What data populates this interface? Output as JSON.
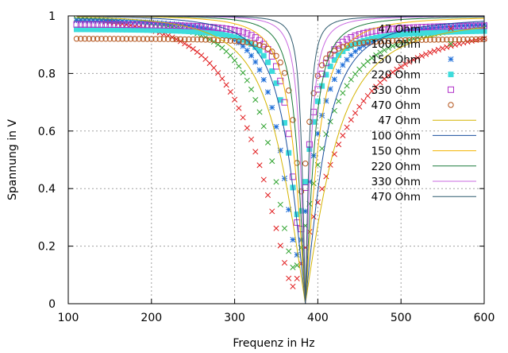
{
  "chart_data": {
    "type": "line",
    "title": "",
    "xlabel": "Frequenz in Hz",
    "ylabel": "Spannung in V",
    "xlim": [
      100,
      600
    ],
    "ylim": [
      0,
      1
    ],
    "xticks": [
      "100",
      "200",
      "300",
      "400",
      "500",
      "600"
    ],
    "yticks": [
      "0",
      "0.2",
      "0.4",
      "0.6",
      "0.8",
      "1"
    ],
    "grid": true,
    "legend_position": "top-right",
    "series": [
      {
        "name": "47 Ohm",
        "style": "points",
        "marker": "x",
        "color": "#e0191b",
        "f0": 370,
        "ymin": 0.06,
        "yfit": 0.15,
        "rbw": 0.42
      },
      {
        "name": "100 Ohm",
        "style": "points",
        "marker": "x",
        "color": "#2fa32f",
        "f0": 372,
        "ymin": 0.12,
        "yfit": 0.14,
        "rbw": 0.27
      },
      {
        "name": "150 Ohm",
        "style": "points",
        "marker": "asterisk",
        "color": "#1e6ed8",
        "f0": 375,
        "ymin": 0.17,
        "yfit": 0.13,
        "rbw": 0.18
      },
      {
        "name": "220 Ohm",
        "style": "points",
        "marker": "filled-square",
        "color": "#3ddcdc",
        "f0": 377,
        "ymin": 0.3,
        "yfit": 0.11,
        "rbw": 0.12
      },
      {
        "name": "330 Ohm",
        "style": "points",
        "marker": "open-square",
        "color": "#b030c8",
        "f0": 378,
        "ymin": 0.24,
        "yfit": 0.1,
        "rbw": 0.1
      },
      {
        "name": "470 Ohm",
        "style": "points",
        "marker": "open-circle",
        "color": "#b3541c",
        "f0": 380,
        "ymin": 0.39,
        "yfit": 0.09,
        "rbw": 0.07
      },
      {
        "name": "47 Ohm",
        "style": "line",
        "color": "#d4b400",
        "f0": 385,
        "ymin": 0.0,
        "rbw": 0.27
      },
      {
        "name": "100 Ohm",
        "style": "line",
        "color": "#1a4f9e",
        "f0": 385,
        "ymin": 0.0,
        "rbw": 0.18
      },
      {
        "name": "150 Ohm",
        "style": "line",
        "color": "#f2b300",
        "f0": 385,
        "ymin": 0.0,
        "rbw": 0.12
      },
      {
        "name": "220 Ohm",
        "style": "line",
        "color": "#1a7a3a",
        "f0": 385,
        "ymin": 0.0,
        "rbw": 0.085
      },
      {
        "name": "330 Ohm",
        "style": "line",
        "color": "#c868e0",
        "f0": 385,
        "ymin": 0.0,
        "rbw": 0.055
      },
      {
        "name": "470 Ohm",
        "style": "line",
        "color": "#2e5a6e",
        "f0": 385,
        "ymin": 0.0,
        "rbw": 0.038
      }
    ]
  }
}
